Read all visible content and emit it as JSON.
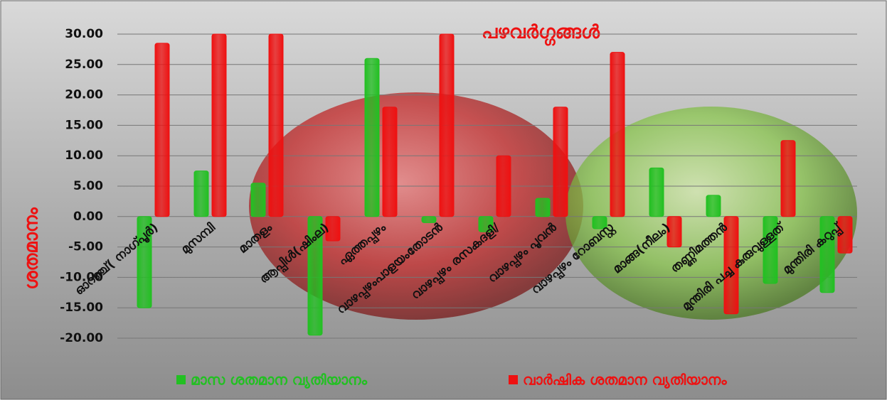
{
  "chart_data": {
    "type": "bar",
    "title": "പഴവർഗ്ഗങ്ങൾ",
    "y_axis_label": "ശതമാനം",
    "categories": [
      "ഓറഞ്ച്( നാഗ്പൂർ)",
      "മുസമ്പി",
      "മാതളം",
      "ആപ്പിൾ(ഷിംല)",
      "ഏത്തപ്പഴം",
      "വാഴപ്പഴംപാളയംതോടൻ",
      "വാഴപ്പഴം രസകദളി/",
      "വാഴപ്പഴം പൂവൻ",
      "വാഴപ്പഴം റോബസ്റ്റ",
      "മാങ്ങ(നീലം)",
      "തണ്ണിമത്തൻ",
      "മുന്തിരി പച്ച കുരുവുള്ളത്",
      "മുന്തിരി കറുപ്പ്"
    ],
    "series": [
      {
        "name": "മാസ ശതമാന വ്യതിയാനം",
        "color": "#22c022",
        "values": [
          -15,
          7.5,
          5.5,
          -19.5,
          26,
          -1,
          -2.5,
          3,
          -2,
          8,
          3.5,
          -11,
          -12.5
        ]
      },
      {
        "name": "വാർഷിക ശതമാന വ്യതിയാനം",
        "color": "#ee1111",
        "values": [
          28.5,
          30,
          30,
          -4,
          18,
          30,
          10,
          18,
          27,
          -5,
          -16,
          12.5,
          -6
        ]
      }
    ],
    "ylim": [
      -20,
      30
    ],
    "yticks": [
      {
        "value": -20,
        "label": "-20.00"
      },
      {
        "value": -15,
        "label": "-15.00"
      },
      {
        "value": -10,
        "label": "-10.00"
      },
      {
        "value": -5,
        "label": "-5.00"
      },
      {
        "value": 0,
        "label": "0.00"
      },
      {
        "value": 5,
        "label": "5.00"
      },
      {
        "value": 10,
        "label": "10.00"
      },
      {
        "value": 15,
        "label": "15.00"
      },
      {
        "value": 20,
        "label": "20.00"
      },
      {
        "value": 25,
        "label": "25.00"
      },
      {
        "value": 30,
        "label": "30.00"
      }
    ],
    "grid": true,
    "legend": "bottom"
  }
}
